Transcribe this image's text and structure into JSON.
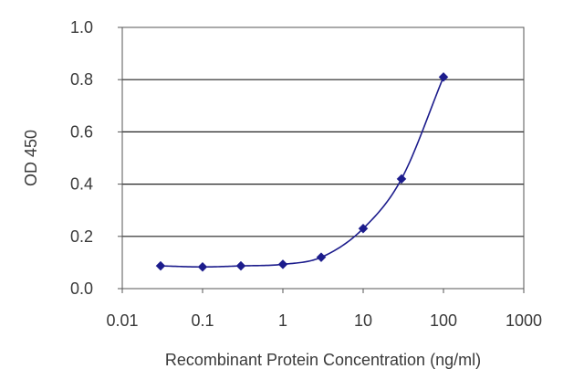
{
  "chart_data": {
    "type": "scatter",
    "title": "",
    "xlabel": "Recombinant Protein Concentration (ng/ml)",
    "ylabel": "OD 450",
    "xscale": "log",
    "xlim": [
      0.01,
      1000
    ],
    "ylim": [
      0.0,
      1.0
    ],
    "xticks": [
      "0.01",
      "0.1",
      "1",
      "10",
      "100",
      "1000"
    ],
    "yticks": [
      "0.0",
      "0.2",
      "0.4",
      "0.6",
      "0.8",
      "1.0"
    ],
    "grid": "horizontal",
    "legend": "none",
    "color": "#1c1c8c",
    "series": [
      {
        "x": [
          0.03,
          0.1,
          0.3,
          1,
          3,
          10,
          30,
          100
        ],
        "y": [
          0.087,
          0.083,
          0.087,
          0.093,
          0.12,
          0.23,
          0.42,
          0.81
        ]
      }
    ]
  }
}
